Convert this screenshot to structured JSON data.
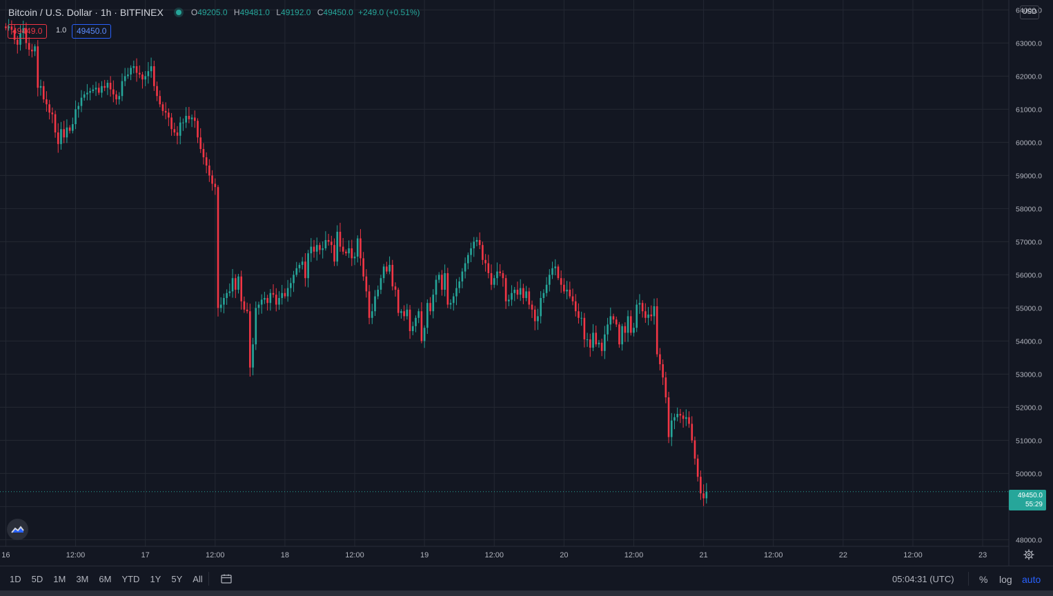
{
  "header": {
    "symbol_title": "Bitcoin / U.S. Dollar · 1h · BITFINEX",
    "ohlc": {
      "o_label": "O",
      "o": "49205.0",
      "h_label": "H",
      "h": "49481.0",
      "l_label": "L",
      "l": "49192.0",
      "c_label": "C",
      "c": "49450.0",
      "change": "+249.0 (+0.51%)"
    },
    "bid": "49449.0",
    "spread": "1.0",
    "ask": "49450.0"
  },
  "currency_badge": "USD",
  "current_price": {
    "value": "49450.0",
    "countdown": "55:29"
  },
  "bottom_bar": {
    "ranges": [
      "1D",
      "5D",
      "1M",
      "3M",
      "6M",
      "YTD",
      "1Y",
      "5Y",
      "All"
    ],
    "clock": "05:04:31 (UTC)",
    "percent_label": "%",
    "log_label": "log",
    "auto_label": "auto"
  },
  "colors": {
    "up": "#26a69a",
    "down": "#f23645",
    "background": "#131722",
    "grid": "#2a2e39"
  },
  "chart_data": {
    "type": "candlestick",
    "interval": "1h",
    "title": "Bitcoin / U.S. Dollar · 1h · BITFINEX",
    "ylim": [
      47800,
      64300
    ],
    "xlim": [
      -2,
      345
    ],
    "y_ticks": [
      "64000.0",
      "63000.0",
      "62000.0",
      "61000.0",
      "60000.0",
      "59000.0",
      "58000.0",
      "57000.0",
      "56000.0",
      "55000.0",
      "54000.0",
      "53000.0",
      "52000.0",
      "51000.0",
      "50000.0",
      "49000.0",
      "48000.0"
    ],
    "x_ticks": [
      {
        "x": 0,
        "label": "16"
      },
      {
        "x": 24,
        "label": "12:00"
      },
      {
        "x": 48,
        "label": "17"
      },
      {
        "x": 72,
        "label": "12:00"
      },
      {
        "x": 96,
        "label": "18"
      },
      {
        "x": 120,
        "label": "12:00"
      },
      {
        "x": 144,
        "label": "19"
      },
      {
        "x": 168,
        "label": "12:00"
      },
      {
        "x": 192,
        "label": "20"
      },
      {
        "x": 216,
        "label": "12:00"
      },
      {
        "x": 240,
        "label": "21"
      },
      {
        "x": 264,
        "label": "12:00"
      },
      {
        "x": 288,
        "label": "22"
      },
      {
        "x": 312,
        "label": "12:00"
      },
      {
        "x": 336,
        "label": "23"
      }
    ],
    "close_series": [
      63450,
      63500,
      63400,
      63100,
      62950,
      63300,
      63450,
      63000,
      62800,
      62750,
      62900,
      61650,
      61700,
      61300,
      61150,
      60900,
      60850,
      60300,
      59950,
      60400,
      60150,
      60450,
      60350,
      60550,
      61000,
      61100,
      61350,
      61450,
      61500,
      61550,
      61600,
      61650,
      61500,
      61700,
      61650,
      61800,
      61600,
      61450,
      61300,
      61400,
      61850,
      62000,
      62050,
      62250,
      62300,
      62100,
      62050,
      61900,
      62000,
      62150,
      62300,
      61700,
      61400,
      61150,
      60950,
      60900,
      60750,
      60400,
      60300,
      60200,
      60600,
      60600,
      60800,
      60700,
      60750,
      60650,
      60150,
      59800,
      59550,
      59300,
      59000,
      58750,
      58650,
      55000,
      55100,
      55300,
      55450,
      55500,
      55900,
      55550,
      55950,
      55200,
      54950,
      54900,
      53200,
      53900,
      55000,
      55100,
      55250,
      55300,
      55150,
      55450,
      55400,
      55100,
      55300,
      55450,
      55350,
      55600,
      55750,
      56000,
      56200,
      56300,
      56400,
      55900,
      56650,
      56850,
      56700,
      56900,
      56750,
      56800,
      57050,
      57000,
      56900,
      56400,
      57300,
      56850,
      56700,
      56650,
      56800,
      56500,
      56550,
      57100,
      56500,
      55950,
      55500,
      54700,
      54900,
      55350,
      55550,
      55900,
      56250,
      56100,
      56300,
      55650,
      55550,
      54850,
      54900,
      54750,
      54950,
      54300,
      54450,
      54700,
      54900,
      54000,
      54400,
      55150,
      54900,
      55400,
      55850,
      56000,
      55550,
      56050,
      55100,
      55150,
      55350,
      55600,
      55800,
      56100,
      56350,
      56600,
      56800,
      57000,
      57050,
      56900,
      56450,
      56350,
      56050,
      55700,
      55900,
      56100,
      56050,
      55900,
      55200,
      55250,
      55450,
      55550,
      55400,
      55600,
      55300,
      55500,
      55100,
      54950,
      54600,
      54750,
      55300,
      55450,
      55700,
      56000,
      56200,
      56250,
      55900,
      55700,
      55500,
      55550,
      55350,
      55200,
      54900,
      54700,
      54700,
      54050,
      54050,
      53800,
      54250,
      53900,
      53950,
      53700,
      54200,
      54500,
      54750,
      54650,
      54500,
      53900,
      54450,
      54250,
      54750,
      54250,
      54400,
      55100,
      55150,
      54900,
      54700,
      54800,
      54750,
      55050,
      53600,
      53300,
      52900,
      52300,
      51100,
      51600,
      51700,
      51800,
      51750,
      51650,
      51700,
      51500,
      51000,
      50450,
      49900,
      49400,
      49250,
      49450
    ]
  }
}
